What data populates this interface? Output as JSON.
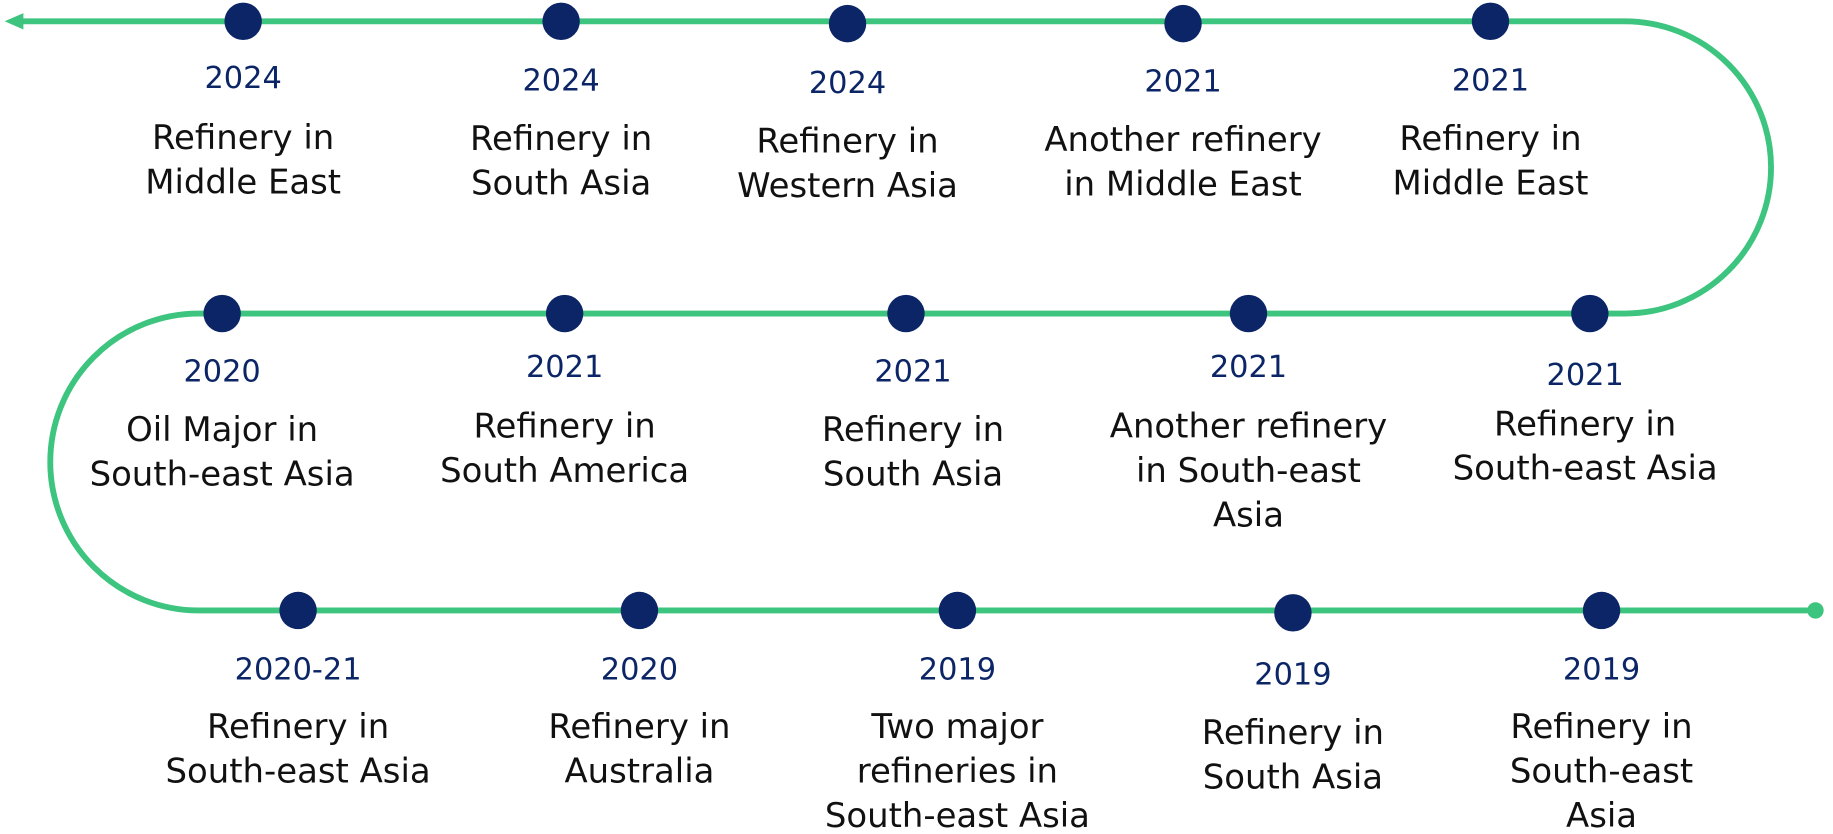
{
  "nodes": [
    {
      "year": "2024",
      "label": [
        "Refinery in",
        "Middle East"
      ]
    },
    {
      "year": "2024",
      "label": [
        "Refinery in",
        "South Asia"
      ]
    },
    {
      "year": "2024",
      "label": [
        "Refinery in",
        "Western Asia"
      ]
    },
    {
      "year": "2021",
      "label": [
        "Another refinery",
        "in Middle East"
      ]
    },
    {
      "year": "2021",
      "label": [
        "Refinery in",
        "Middle East"
      ]
    },
    {
      "year": "2020",
      "label": [
        "Oil Major in",
        "South-east Asia"
      ]
    },
    {
      "year": "2021",
      "label": [
        "Refinery in",
        "South America"
      ]
    },
    {
      "year": "2021",
      "label": [
        "Refinery in",
        "South Asia"
      ]
    },
    {
      "year": "2021",
      "label": [
        "Another refinery",
        "in South-east",
        "Asia"
      ]
    },
    {
      "year": "2021",
      "label": [
        "Refinery in",
        "South-east Asia"
      ]
    },
    {
      "year": "2020-21",
      "label": [
        "Refinery in",
        "South-east Asia"
      ]
    },
    {
      "year": "2020",
      "label": [
        "Refinery in",
        "Australia"
      ]
    },
    {
      "year": "2019",
      "label": [
        "Two major",
        "refineries in",
        "South-east Asia"
      ]
    },
    {
      "year": "2019",
      "label": [
        "Refinery in",
        "South Asia"
      ]
    },
    {
      "year": "2019",
      "label": [
        "Refinery in",
        "South-east",
        "Asia"
      ]
    }
  ]
}
